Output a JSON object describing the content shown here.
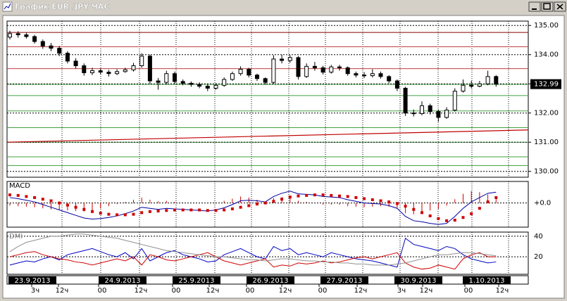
{
  "window_title": "График EUR /JPY  ЧАС",
  "chart_data": [
    {
      "type": "candlestick",
      "ylim": [
        129.8,
        135.15
      ],
      "yticks": [
        {
          "value": 135,
          "label": "135.00"
        },
        {
          "value": 134,
          "label": "134.00"
        },
        {
          "value": 133,
          "label": "133.00"
        },
        {
          "value": 132,
          "label": "132.00"
        },
        {
          "value": 131,
          "label": "131.00"
        },
        {
          "value": 130,
          "label": "130.00"
        }
      ],
      "last_price": 132.99,
      "levels": [
        {
          "value": 134.76,
          "color": "#800000"
        },
        {
          "value": 134.27,
          "color": "#c04040"
        },
        {
          "value": 133.52,
          "color": "#c04040"
        },
        {
          "value": 132.98,
          "color": "#40a040"
        },
        {
          "value": 132.6,
          "color": "#40a040"
        },
        {
          "value": 132.07,
          "color": "#40a040"
        },
        {
          "value": 131.5,
          "color": "#40a040"
        },
        {
          "value": 131.0,
          "color": "#40a040"
        },
        {
          "value": 130.5,
          "color": "#40a040"
        },
        {
          "value": 130.2,
          "color": "#40a040"
        }
      ],
      "trend_line": {
        "values": [
          131.0,
          131.42
        ],
        "color": "#c00000"
      },
      "up_color": "#ffffff",
      "down_color": "#000000",
      "candles": [
        [
          134.6,
          134.82,
          134.52,
          134.72
        ],
        [
          134.72,
          134.8,
          134.58,
          134.68
        ],
        [
          134.68,
          134.75,
          134.55,
          134.62
        ],
        [
          134.62,
          134.68,
          134.38,
          134.45
        ],
        [
          134.45,
          134.52,
          134.2,
          134.3
        ],
        [
          134.3,
          134.4,
          134.12,
          134.22
        ],
        [
          134.22,
          134.3,
          133.95,
          134.05
        ],
        [
          134.05,
          134.12,
          133.7,
          133.78
        ],
        [
          133.78,
          133.88,
          133.52,
          133.62
        ],
        [
          133.62,
          133.7,
          133.28,
          133.38
        ],
        [
          133.38,
          133.55,
          133.3,
          133.45
        ],
        [
          133.45,
          133.52,
          133.32,
          133.4
        ],
        [
          133.4,
          133.48,
          133.25,
          133.35
        ],
        [
          133.35,
          133.5,
          133.3,
          133.42
        ],
        [
          133.42,
          133.55,
          133.38,
          133.48
        ],
        [
          133.48,
          133.72,
          133.42,
          133.62
        ],
        [
          133.62,
          134.05,
          133.55,
          133.95
        ],
        [
          133.95,
          134.0,
          133.0,
          133.1
        ],
        [
          133.1,
          133.2,
          132.8,
          133.05
        ],
        [
          133.05,
          133.45,
          132.98,
          133.35
        ],
        [
          133.35,
          133.42,
          133.0,
          133.08
        ],
        [
          133.08,
          133.15,
          132.95,
          133.02
        ],
        [
          133.02,
          133.08,
          132.9,
          132.98
        ],
        [
          132.98,
          133.05,
          132.85,
          132.92
        ],
        [
          132.92,
          133.0,
          132.75,
          132.85
        ],
        [
          132.85,
          133.02,
          132.8,
          132.95
        ],
        [
          132.95,
          133.22,
          132.9,
          133.15
        ],
        [
          133.15,
          133.42,
          133.1,
          133.35
        ],
        [
          133.35,
          133.6,
          133.28,
          133.5
        ],
        [
          133.5,
          133.55,
          133.22,
          133.3
        ],
        [
          133.3,
          133.35,
          133.1,
          133.18
        ],
        [
          133.18,
          133.22,
          132.98,
          133.05
        ],
        [
          133.05,
          133.98,
          133.0,
          133.85
        ],
        [
          133.85,
          134.0,
          133.7,
          133.8
        ],
        [
          133.8,
          133.98,
          133.72,
          133.9
        ],
        [
          133.9,
          133.95,
          133.15,
          133.25
        ],
        [
          133.25,
          133.7,
          133.2,
          133.6
        ],
        [
          133.6,
          133.75,
          133.45,
          133.55
        ],
        [
          133.55,
          133.62,
          133.32,
          133.4
        ],
        [
          133.4,
          133.65,
          133.35,
          133.58
        ],
        [
          133.58,
          133.65,
          133.45,
          133.55
        ],
        [
          133.55,
          133.6,
          133.28,
          133.35
        ],
        [
          133.35,
          133.42,
          133.22,
          133.3
        ],
        [
          133.3,
          133.4,
          133.2,
          133.28
        ],
        [
          133.28,
          133.5,
          133.22,
          133.35
        ],
        [
          133.35,
          133.42,
          133.18,
          133.25
        ],
        [
          133.25,
          133.3,
          133.02,
          133.1
        ],
        [
          133.1,
          133.15,
          132.75,
          132.85
        ],
        [
          132.85,
          132.9,
          131.9,
          132.0
        ],
        [
          132.0,
          132.12,
          131.88,
          131.98
        ],
        [
          131.98,
          132.4,
          131.92,
          132.25
        ],
        [
          132.25,
          132.32,
          131.95,
          132.05
        ],
        [
          132.05,
          132.12,
          131.7,
          131.85
        ],
        [
          131.85,
          132.2,
          131.8,
          132.1
        ],
        [
          132.1,
          132.85,
          132.05,
          132.75
        ],
        [
          132.75,
          133.15,
          132.7,
          132.95
        ],
        [
          132.95,
          133.1,
          132.85,
          132.92
        ],
        [
          132.92,
          133.1,
          132.88,
          133.0
        ],
        [
          133.0,
          133.45,
          132.95,
          133.25
        ],
        [
          133.25,
          133.3,
          132.9,
          132.99
        ]
      ]
    },
    {
      "type": "macd",
      "title": "MACD",
      "ylim": [
        -0.45,
        0.4
      ],
      "yticks": [
        {
          "value": 0,
          "label": "+0.0"
        }
      ],
      "series": [
        {
          "color": "#0000a0",
          "values": [
            0.1,
            0.08,
            0.05,
            0.02,
            -0.03,
            -0.08,
            -0.13,
            -0.18,
            -0.23,
            -0.28,
            -0.3,
            -0.29,
            -0.27,
            -0.24,
            -0.2,
            -0.15,
            -0.08,
            -0.1,
            -0.12,
            -0.1,
            -0.11,
            -0.12,
            -0.13,
            -0.14,
            -0.15,
            -0.13,
            -0.09,
            -0.03,
            0.04,
            0.05,
            0.04,
            0.02,
            0.12,
            0.18,
            0.22,
            0.17,
            0.16,
            0.15,
            0.12,
            0.11,
            0.1,
            0.06,
            0.03,
            0.0,
            -0.01,
            -0.02,
            -0.05,
            -0.1,
            -0.25,
            -0.33,
            -0.35,
            -0.38,
            -0.4,
            -0.38,
            -0.25,
            -0.1,
            0.02,
            0.1,
            0.18,
            0.2
          ]
        },
        {
          "color": "#d00000",
          "values": [
            0.15,
            0.14,
            0.12,
            0.1,
            0.07,
            0.04,
            0.0,
            -0.04,
            -0.08,
            -0.12,
            -0.16,
            -0.19,
            -0.21,
            -0.22,
            -0.22,
            -0.21,
            -0.18,
            -0.16,
            -0.15,
            -0.14,
            -0.13,
            -0.13,
            -0.13,
            -0.13,
            -0.14,
            -0.14,
            -0.13,
            -0.11,
            -0.08,
            -0.05,
            -0.02,
            0.0,
            0.03,
            0.07,
            0.11,
            0.13,
            0.14,
            0.15,
            0.15,
            0.14,
            0.13,
            0.12,
            0.1,
            0.08,
            0.06,
            0.04,
            0.02,
            -0.01,
            -0.06,
            -0.12,
            -0.18,
            -0.24,
            -0.29,
            -0.33,
            -0.32,
            -0.27,
            -0.2,
            -0.1,
            0.02,
            0.1
          ]
        }
      ],
      "histogram": {
        "color": "#d00000",
        "values": [
          -0.05,
          -0.06,
          -0.07,
          -0.08,
          -0.1,
          -0.12,
          -0.13,
          -0.14,
          -0.15,
          -0.16,
          -0.14,
          -0.1,
          -0.06,
          -0.02,
          0.02,
          0.06,
          0.1,
          0.06,
          0.03,
          0.04,
          0.02,
          0.01,
          0.0,
          -0.01,
          -0.01,
          0.01,
          0.04,
          0.08,
          0.12,
          0.1,
          0.06,
          0.02,
          0.09,
          0.11,
          0.11,
          0.04,
          0.02,
          0.0,
          -0.03,
          -0.03,
          -0.03,
          -0.06,
          -0.07,
          -0.08,
          -0.07,
          -0.06,
          -0.07,
          -0.09,
          -0.19,
          -0.21,
          -0.17,
          -0.14,
          -0.11,
          -0.05,
          0.07,
          0.17,
          0.22,
          0.2,
          0.16,
          0.1
        ]
      }
    },
    {
      "type": "dmi",
      "title": "DMI",
      "ylim": [
        3,
        44
      ],
      "yticks": [
        40,
        20
      ],
      "series": [
        {
          "color": "#0000c0",
          "values": [
            12,
            14,
            16,
            15,
            18,
            20,
            17,
            22,
            24,
            26,
            28,
            25,
            22,
            20,
            24,
            18,
            28,
            16,
            20,
            24,
            26,
            22,
            20,
            18,
            15,
            16,
            22,
            25,
            28,
            24,
            20,
            18,
            30,
            26,
            28,
            22,
            24,
            22,
            20,
            24,
            22,
            20,
            18,
            17,
            16,
            14,
            12,
            10,
            38,
            32,
            30,
            28,
            26,
            30,
            28,
            22,
            18,
            16,
            14,
            15
          ]
        },
        {
          "color": "#d00000",
          "values": [
            20,
            22,
            24,
            25,
            22,
            20,
            18,
            17,
            15,
            14,
            12,
            14,
            16,
            18,
            16,
            20,
            12,
            22,
            20,
            17,
            16,
            18,
            20,
            22,
            24,
            20,
            16,
            14,
            12,
            14,
            16,
            18,
            10,
            12,
            11,
            14,
            13,
            14,
            16,
            14,
            15,
            17,
            19,
            20,
            18,
            20,
            22,
            24,
            14,
            10,
            8,
            9,
            12,
            10,
            8,
            18,
            22,
            24,
            20,
            20
          ]
        },
        {
          "color": "#909090",
          "values": [
            25,
            30,
            34,
            36,
            38,
            40,
            40,
            41,
            42,
            42,
            41,
            40,
            39,
            38,
            36,
            34,
            32,
            30,
            28,
            26,
            25,
            24,
            23,
            22,
            21,
            20,
            20,
            19,
            18,
            17,
            17,
            16,
            17,
            18,
            18,
            17,
            16,
            16,
            15,
            15,
            14,
            14,
            13,
            13,
            12,
            12,
            12,
            13,
            14,
            16,
            18,
            20,
            22,
            22,
            23,
            24,
            24,
            23,
            22,
            21
          ]
        }
      ]
    }
  ],
  "dates": [
    "23.9.2013",
    "24.9.2013",
    "25.9.2013",
    "26.9.2013",
    "27.9.2013",
    "30.9.2013",
    "1.10.2013"
  ],
  "hours": [
    "3ч",
    "12ч",
    "00",
    "12ч",
    "00",
    "12ч",
    "00",
    "12ч",
    "00",
    "12ч",
    "3ч",
    "12ч",
    "00",
    "12ч"
  ]
}
